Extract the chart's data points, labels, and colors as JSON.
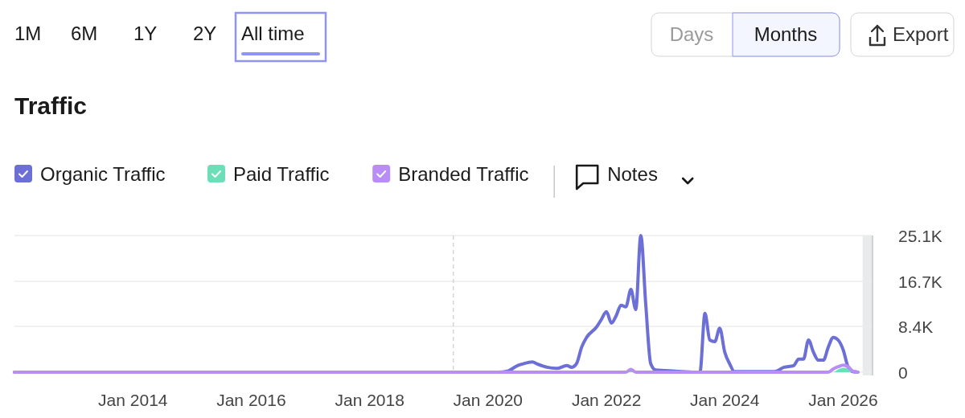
{
  "chart_data": {
    "type": "line",
    "title": "Traffic",
    "annotations": [
      "1M",
      "6M",
      "1Y",
      "2Y",
      "All time",
      "Days",
      "Months",
      "Export",
      "Notes"
    ],
    "xlim": [
      "2012-01",
      "2026-07"
    ],
    "xticks": [
      {
        "value": "2014-01",
        "label": "Jan 2014"
      },
      {
        "value": "2016-01",
        "label": "Jan 2016"
      },
      {
        "value": "2018-01",
        "label": "Jan 2018"
      },
      {
        "value": "2020-01",
        "label": "Jan 2020"
      },
      {
        "value": "2022-01",
        "label": "Jan 2022"
      },
      {
        "value": "2024-01",
        "label": "Jan 2024"
      },
      {
        "value": "2026-01",
        "label": "Jan 2026"
      }
    ],
    "ylim": [
      0,
      25100
    ],
    "yticks": [
      0,
      {
        "value": 8400,
        "label": "8.4K"
      },
      {
        "value": 16700,
        "label": "16.7K"
      },
      {
        "value": 25100,
        "label": "25.1K"
      }
    ],
    "grid": "y",
    "legend": "top left",
    "marker": "none",
    "line_style": "solid",
    "ref_lines": [
      {
        "axis": "x",
        "value": "2019-06",
        "label": null,
        "color": "#d4d4d4",
        "line_style": "dashed"
      }
    ],
    "bands": [
      {
        "axis": "x",
        "from": "2026-05",
        "to": "2026-07",
        "label": null,
        "color": "#e8ebec"
      }
    ],
    "series": [
      {
        "name": "Organic Traffic",
        "color": "#6b6fd6",
        "x": [
          "2012-01",
          "2020-03",
          "2020-05",
          "2020-07",
          "2020-08",
          "2020-10",
          "2020-11",
          "2021-01",
          "2021-03",
          "2021-05",
          "2021-06",
          "2021-07",
          "2021-08",
          "2021-09",
          "2021-11",
          "2021-12",
          "2022-01",
          "2022-02",
          "2022-03",
          "2022-04",
          "2022-05",
          "2022-06",
          "2022-07",
          "2022-08",
          "2022-09",
          "2022-10",
          "2022-11",
          "2023-03",
          "2023-07",
          "2023-08",
          "2023-09",
          "2023-10",
          "2023-11",
          "2023-12",
          "2024-01",
          "2024-02",
          "2024-03",
          "2024-11",
          "2025-01",
          "2025-03",
          "2025-04",
          "2025-05",
          "2025-06",
          "2025-07",
          "2025-08",
          "2025-09",
          "2025-10",
          "2025-11",
          "2025-12",
          "2026-01",
          "2026-02",
          "2026-03",
          "2026-04"
        ],
        "values": [
          0,
          0,
          200,
          1200,
          1500,
          1900,
          1500,
          900,
          700,
          1200,
          900,
          1600,
          4600,
          6400,
          8300,
          9700,
          11100,
          9000,
          10300,
          12300,
          12000,
          15200,
          11500,
          25100,
          12300,
          1600,
          400,
          200,
          0,
          0,
          10800,
          5900,
          5600,
          8100,
          3700,
          1500,
          100,
          100,
          900,
          1200,
          2400,
          2400,
          5900,
          3700,
          2200,
          2200,
          4600,
          6400,
          5900,
          4100,
          900,
          100,
          0
        ]
      },
      {
        "name": "Paid Traffic",
        "type": "area",
        "color": "#6ddfb8",
        "x": [
          "2012-01",
          "2022-05",
          "2022-06",
          "2022-07",
          "2025-11",
          "2025-12",
          "2026-01",
          "2026-02",
          "2026-03",
          "2026-04"
        ],
        "values": [
          0,
          0,
          300,
          0,
          0,
          500,
          800,
          600,
          0,
          0
        ]
      },
      {
        "name": "Branded Traffic",
        "color": "#b98df5",
        "x": [
          "2012-01",
          "2022-05",
          "2022-06",
          "2022-07",
          "2025-10",
          "2025-11",
          "2025-12",
          "2026-01",
          "2026-02",
          "2026-03",
          "2026-04"
        ],
        "values": [
          0,
          0,
          500,
          0,
          0,
          600,
          1000,
          1300,
          1000,
          200,
          0
        ]
      }
    ]
  }
}
